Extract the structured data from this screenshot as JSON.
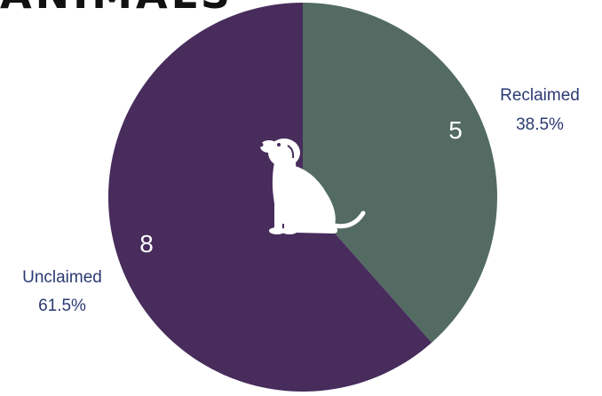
{
  "title": "ANIMALS",
  "center_icon": "sitting-dog-icon",
  "chart_data": {
    "type": "pie",
    "title": "",
    "categories": [
      "Reclaimed",
      "Unclaimed"
    ],
    "values": [
      5,
      8
    ],
    "percent_labels": [
      "38.5%",
      "61.5%"
    ],
    "colors": [
      "#536b62",
      "#472c5c"
    ],
    "label_color": "#2b3a73",
    "start": "12 o'clock, clockwise",
    "legend": "none"
  }
}
